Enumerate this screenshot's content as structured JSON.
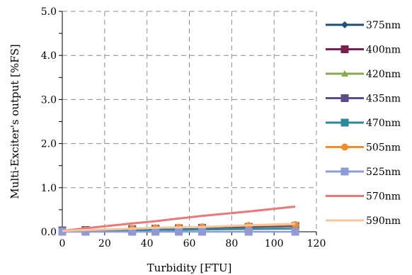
{
  "chart_data": {
    "type": "line",
    "xlabel": "Turbidity [FTU]",
    "ylabel": "Multi-Exciter's  output [%FS]",
    "xlim": [
      0,
      120
    ],
    "ylim": [
      0,
      5
    ],
    "x_ticks": [
      "0",
      "20",
      "40",
      "60",
      "80",
      "100",
      "120"
    ],
    "y_ticks": [
      "0.0",
      "1.0",
      "2.0",
      "3.0",
      "4.0",
      "5.0"
    ],
    "grid": "dashed",
    "legend_position": "right",
    "series": [
      {
        "name": "375nm",
        "color": "#1f4e79",
        "marker": "diamond",
        "x": [
          0,
          11,
          33,
          44,
          55,
          66,
          88,
          110
        ],
        "y": [
          0.02,
          0.04,
          0.06,
          0.07,
          0.08,
          0.09,
          0.11,
          0.13
        ]
      },
      {
        "name": "400nm",
        "color": "#7a2050",
        "marker": "square",
        "x": [
          0,
          11,
          33,
          44,
          55,
          66,
          88,
          110
        ],
        "y": [
          0.02,
          0.03,
          0.05,
          0.06,
          0.07,
          0.08,
          0.1,
          0.12
        ]
      },
      {
        "name": "420nm",
        "color": "#86a94e",
        "marker": "triangle",
        "x": [
          0,
          11,
          33,
          44,
          55,
          66,
          88,
          110
        ],
        "y": [
          0.02,
          0.03,
          0.05,
          0.06,
          0.07,
          0.08,
          0.1,
          0.12
        ]
      },
      {
        "name": "435nm",
        "color": "#5b4b8a",
        "marker": "square",
        "x": [
          0,
          11,
          33,
          44,
          55,
          66,
          88,
          110
        ],
        "y": [
          0.03,
          0.04,
          0.06,
          0.07,
          0.08,
          0.09,
          0.11,
          0.13
        ]
      },
      {
        "name": "470nm",
        "color": "#2e8a9a",
        "marker": "square",
        "x": [
          0,
          11,
          33,
          44,
          55,
          66,
          88,
          110
        ],
        "y": [
          0.01,
          0.02,
          0.03,
          0.04,
          0.04,
          0.05,
          0.06,
          0.07
        ]
      },
      {
        "name": "505nm",
        "color": "#f28a2e",
        "marker": "circle",
        "x": [
          0,
          11,
          33,
          44,
          55,
          66,
          88,
          110
        ],
        "y": [
          0.02,
          0.04,
          0.07,
          0.09,
          0.1,
          0.11,
          0.14,
          0.16
        ]
      },
      {
        "name": "525nm",
        "color": "#8e9bd6",
        "marker": "square",
        "x": [
          0,
          11,
          33,
          44,
          55,
          66,
          88,
          110
        ],
        "y": [
          0.0,
          0.0,
          0.0,
          0.0,
          0.0,
          0.0,
          0.0,
          0.0
        ]
      },
      {
        "name": "570nm",
        "color": "#e8787a",
        "marker": "none",
        "x": [
          0,
          11,
          33,
          44,
          55,
          66,
          88,
          110
        ],
        "y": [
          0.02,
          0.08,
          0.19,
          0.24,
          0.3,
          0.36,
          0.46,
          0.57
        ]
      },
      {
        "name": "590nm",
        "color": "#f7c69b",
        "marker": "none",
        "x": [
          0,
          11,
          33,
          44,
          55,
          66,
          88,
          110
        ],
        "y": [
          0.02,
          0.04,
          0.07,
          0.09,
          0.1,
          0.11,
          0.15,
          0.18
        ]
      }
    ]
  }
}
